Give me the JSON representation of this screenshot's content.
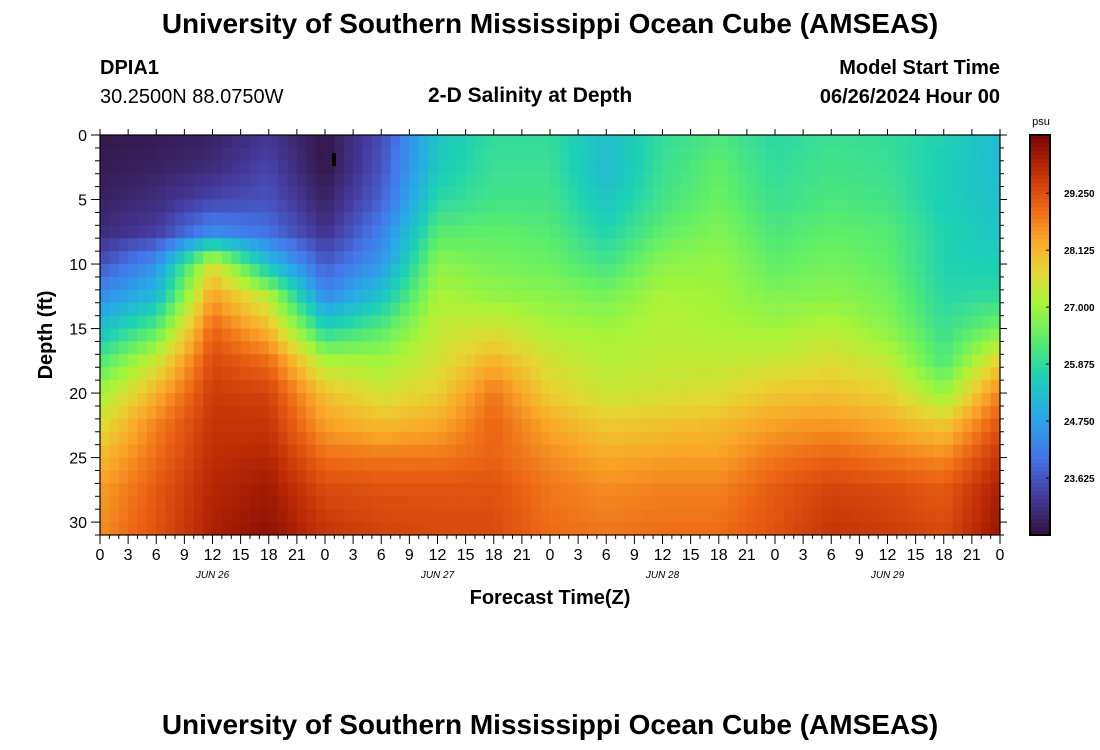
{
  "header": {
    "title": "University of Southern Mississippi Ocean Cube (AMSEAS)",
    "station_id": "DPIA1",
    "station_coords": "30.2500N  88.0750W",
    "plot_label": "2-D Salinity at Depth",
    "model_start_label": "Model Start Time",
    "model_start_value": "06/26/2024 Hour 00"
  },
  "footer": {
    "title_repeat": "University of Southern Mississippi Ocean Cube (AMSEAS)"
  },
  "colors": {
    "scale_min_color": "#30123b",
    "scale_mid_color": "#a4fc3c",
    "scale_max_color": "#7a0403"
  },
  "chart_data": {
    "type": "heatmap",
    "title": "2-D Salinity at Depth",
    "xlabel": "Forecast Time(Z)",
    "ylabel": "Depth (ft)",
    "units": "psu",
    "x_hours_range": [
      0,
      96
    ],
    "ylim": [
      0,
      31
    ],
    "y_ticks": [
      0,
      5,
      10,
      15,
      20,
      25,
      30
    ],
    "x_tick_labels": [
      "0",
      "3",
      "6",
      "9",
      "12",
      "15",
      "18",
      "21",
      "0",
      "3",
      "6",
      "9",
      "12",
      "15",
      "18",
      "21",
      "0",
      "3",
      "6",
      "9",
      "12",
      "15",
      "18",
      "21",
      "0",
      "3",
      "6",
      "9",
      "12",
      "15",
      "18",
      "21",
      "0"
    ],
    "date_labels": [
      {
        "text": "JUN 26",
        "hour": 12
      },
      {
        "text": "JUN 27",
        "hour": 36
      },
      {
        "text": "JUN 28",
        "hour": 60
      },
      {
        "text": "JUN 29",
        "hour": 84
      }
    ],
    "colorbar": {
      "label": "psu",
      "min": 22.5,
      "max": 30.4,
      "ticks": [
        23.625,
        24.75,
        25.875,
        27.0,
        28.125,
        29.25
      ],
      "tick_labels": [
        "23.625",
        "24.750",
        "25.875",
        "27.000",
        "28.125",
        "29.250"
      ]
    },
    "depths_ft": [
      0,
      2.5,
      5,
      7.5,
      10,
      12.5,
      15,
      17.5,
      20,
      22.5,
      25,
      27.5,
      31
    ],
    "times_hours": [
      0,
      6,
      12,
      18,
      24,
      30,
      36,
      42,
      48,
      54,
      60,
      66,
      72,
      78,
      84,
      90,
      96
    ],
    "salinity_psu": [
      [
        22.6,
        22.7,
        22.8,
        23.2,
        22.6,
        23.5,
        25.4,
        25.9,
        25.9,
        25.3,
        25.9,
        26.2,
        25.8,
        26.0,
        25.9,
        25.7,
        25.2
      ],
      [
        22.7,
        22.8,
        23.0,
        23.4,
        22.6,
        23.6,
        25.5,
        26.0,
        26.0,
        25.2,
        26.0,
        26.4,
        25.9,
        26.1,
        26.0,
        25.6,
        25.2
      ],
      [
        22.8,
        23.0,
        23.4,
        23.6,
        22.8,
        23.8,
        25.8,
        26.1,
        26.1,
        25.4,
        26.1,
        26.5,
        26.0,
        26.2,
        26.1,
        25.6,
        25.3
      ],
      [
        23.0,
        23.3,
        24.4,
        24.0,
        23.1,
        24.2,
        26.3,
        26.4,
        26.3,
        25.7,
        26.4,
        26.7,
        26.2,
        26.4,
        26.3,
        25.7,
        25.4
      ],
      [
        23.6,
        24.5,
        27.6,
        25.3,
        23.7,
        24.6,
        26.8,
        26.6,
        26.5,
        26.1,
        26.8,
        26.9,
        26.4,
        26.6,
        26.4,
        25.7,
        25.6
      ],
      [
        24.4,
        25.2,
        28.4,
        27.2,
        24.4,
        25.4,
        27.1,
        26.9,
        26.8,
        26.6,
        27.1,
        27.0,
        26.7,
        26.8,
        26.6,
        25.8,
        25.9
      ],
      [
        25.3,
        26.3,
        29.0,
        28.1,
        25.7,
        26.3,
        27.3,
        27.5,
        27.1,
        27.0,
        27.2,
        27.1,
        27.0,
        27.2,
        26.8,
        26.0,
        26.6
      ],
      [
        26.2,
        27.4,
        29.3,
        28.9,
        27.1,
        27.0,
        27.5,
        28.2,
        27.5,
        27.2,
        27.3,
        27.3,
        27.4,
        27.6,
        27.3,
        26.2,
        27.8
      ],
      [
        27.0,
        28.2,
        29.5,
        29.4,
        28.0,
        27.5,
        27.8,
        28.8,
        27.8,
        27.4,
        27.5,
        27.6,
        27.9,
        28.0,
        27.8,
        26.9,
        28.7
      ],
      [
        27.6,
        28.7,
        29.6,
        29.6,
        28.4,
        28.1,
        28.3,
        29.0,
        28.3,
        27.9,
        28.0,
        28.1,
        28.4,
        28.5,
        28.3,
        27.9,
        29.2
      ],
      [
        28.1,
        28.9,
        29.7,
        29.8,
        28.9,
        28.8,
        28.8,
        29.0,
        28.6,
        28.3,
        28.4,
        28.4,
        28.8,
        29.0,
        28.8,
        28.6,
        29.6
      ],
      [
        28.4,
        29.1,
        29.8,
        30.0,
        29.3,
        29.2,
        29.2,
        29.2,
        28.8,
        28.6,
        28.7,
        28.7,
        29.1,
        29.4,
        29.3,
        29.1,
        29.9
      ],
      [
        28.6,
        29.2,
        29.9,
        30.2,
        29.6,
        29.4,
        29.3,
        29.3,
        28.9,
        28.8,
        28.9,
        28.9,
        29.2,
        29.6,
        29.5,
        29.3,
        30.1
      ]
    ]
  }
}
